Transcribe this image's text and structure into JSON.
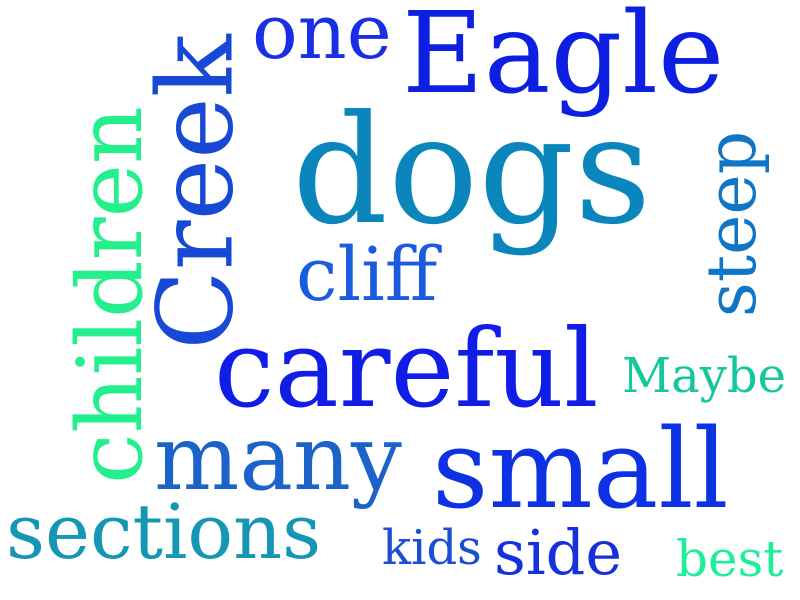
{
  "word_cloud": {
    "background": "#ffffff",
    "words": [
      {
        "id": "dogs",
        "text": "dogs",
        "color": "#0a86bd"
      },
      {
        "id": "eagle",
        "text": "Eagle",
        "color": "#0d1fe0"
      },
      {
        "id": "one",
        "text": "one",
        "color": "#1a2ee6"
      },
      {
        "id": "creek",
        "text": "Creek",
        "color": "#1748d6"
      },
      {
        "id": "children",
        "text": "children",
        "color": "#23f08d"
      },
      {
        "id": "cliff",
        "text": "cliff",
        "color": "#1a5be0"
      },
      {
        "id": "careful",
        "text": "careful",
        "color": "#101de6"
      },
      {
        "id": "steep",
        "text": "steep",
        "color": "#0f75c7"
      },
      {
        "id": "maybe",
        "text": "Maybe",
        "color": "#14c79c"
      },
      {
        "id": "many",
        "text": "many",
        "color": "#1b63c9"
      },
      {
        "id": "small",
        "text": "small",
        "color": "#0e31e3"
      },
      {
        "id": "sections",
        "text": "sections",
        "color": "#1496b4"
      },
      {
        "id": "kids",
        "text": "kids",
        "color": "#1c4ed1"
      },
      {
        "id": "side",
        "text": "side",
        "color": "#1631dc"
      },
      {
        "id": "best",
        "text": "best",
        "color": "#1ef09a"
      }
    ]
  }
}
